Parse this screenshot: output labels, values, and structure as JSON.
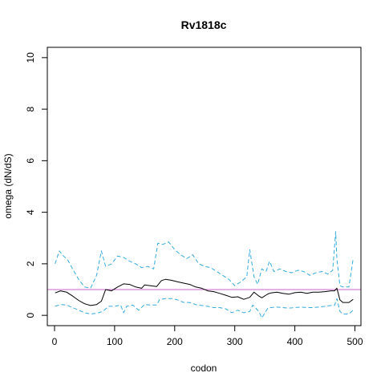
{
  "chart_data": {
    "type": "line",
    "title": "Rv1818c",
    "xlabel": "codon",
    "ylabel": "omega (dN/dS)",
    "xlim": [
      -12,
      510
    ],
    "ylim": [
      -0.4,
      10.4
    ],
    "x_ticks": [
      0,
      100,
      200,
      300,
      400,
      500
    ],
    "y_ticks": [
      0,
      2,
      4,
      6,
      8,
      10
    ],
    "reference_line": {
      "y": 1,
      "color": "#cc66cc"
    },
    "colors": {
      "omega": "#000000",
      "bounds": "#33aadd"
    },
    "series": [
      {
        "key": "omega",
        "style": "solid",
        "x": [
          1,
          10,
          20,
          30,
          40,
          50,
          60,
          70,
          78,
          85,
          95,
          105,
          115,
          125,
          135,
          145,
          150,
          160,
          170,
          178,
          185,
          195,
          205,
          215,
          225,
          235,
          245,
          255,
          265,
          275,
          285,
          295,
          305,
          315,
          325,
          332,
          340,
          345,
          355,
          360,
          370,
          380,
          390,
          400,
          410,
          420,
          430,
          440,
          450,
          460,
          466,
          470,
          475,
          480,
          490,
          497
        ],
        "y": [
          0.87,
          0.95,
          0.9,
          0.75,
          0.58,
          0.45,
          0.38,
          0.42,
          0.55,
          1.0,
          0.95,
          1.1,
          1.22,
          1.2,
          1.1,
          1.05,
          1.18,
          1.15,
          1.12,
          1.35,
          1.4,
          1.36,
          1.3,
          1.25,
          1.2,
          1.1,
          1.05,
          0.95,
          0.92,
          0.85,
          0.78,
          0.7,
          0.72,
          0.62,
          0.7,
          0.9,
          0.75,
          0.68,
          0.83,
          0.87,
          0.9,
          0.85,
          0.82,
          0.88,
          0.9,
          0.85,
          0.9,
          0.9,
          0.92,
          0.95,
          0.95,
          1.05,
          0.6,
          0.5,
          0.5,
          0.62
        ]
      },
      {
        "key": "upper",
        "style": "dashed",
        "x": [
          1,
          8,
          15,
          22,
          30,
          40,
          50,
          60,
          70,
          78,
          85,
          95,
          105,
          115,
          125,
          135,
          145,
          155,
          165,
          172,
          180,
          190,
          200,
          210,
          220,
          230,
          240,
          250,
          260,
          270,
          280,
          290,
          300,
          310,
          320,
          325,
          332,
          338,
          345,
          352,
          358,
          365,
          375,
          385,
          395,
          405,
          415,
          425,
          435,
          445,
          455,
          463,
          468,
          470,
          475,
          480,
          490,
          497
        ],
        "y": [
          2.0,
          2.5,
          2.3,
          2.15,
          1.8,
          1.4,
          1.1,
          1.05,
          1.55,
          2.5,
          1.9,
          2.0,
          2.3,
          2.25,
          2.1,
          2.0,
          1.85,
          1.9,
          1.8,
          2.8,
          2.75,
          2.85,
          2.55,
          2.35,
          2.2,
          2.35,
          2.0,
          1.9,
          1.85,
          1.7,
          1.55,
          1.4,
          1.15,
          1.3,
          1.5,
          2.55,
          1.5,
          1.2,
          1.8,
          1.7,
          2.1,
          1.7,
          1.8,
          1.7,
          1.65,
          1.75,
          1.7,
          1.55,
          1.65,
          1.7,
          1.6,
          1.75,
          3.25,
          2.2,
          1.15,
          1.1,
          1.1,
          2.2
        ]
      },
      {
        "key": "lower",
        "style": "dashed",
        "x": [
          1,
          10,
          20,
          30,
          40,
          50,
          60,
          70,
          80,
          90,
          100,
          110,
          115,
          120,
          130,
          140,
          150,
          160,
          170,
          175,
          185,
          195,
          205,
          215,
          225,
          235,
          245,
          255,
          265,
          275,
          285,
          295,
          305,
          315,
          325,
          330,
          340,
          345,
          355,
          360,
          370,
          380,
          390,
          400,
          410,
          420,
          430,
          440,
          450,
          460,
          466,
          470,
          475,
          480,
          490,
          497
        ],
        "y": [
          0.35,
          0.42,
          0.4,
          0.3,
          0.2,
          0.1,
          0.05,
          0.08,
          0.15,
          0.35,
          0.35,
          0.4,
          0.1,
          0.35,
          0.4,
          0.2,
          0.42,
          0.4,
          0.4,
          0.62,
          0.65,
          0.65,
          0.6,
          0.5,
          0.5,
          0.42,
          0.38,
          0.35,
          0.3,
          0.3,
          0.25,
          0.1,
          0.2,
          0.1,
          0.15,
          0.4,
          0.15,
          -0.1,
          0.28,
          0.3,
          0.32,
          0.3,
          0.28,
          0.3,
          0.32,
          0.3,
          0.3,
          0.32,
          0.35,
          0.38,
          0.38,
          0.65,
          0.15,
          0.05,
          0.05,
          0.2
        ]
      }
    ]
  }
}
